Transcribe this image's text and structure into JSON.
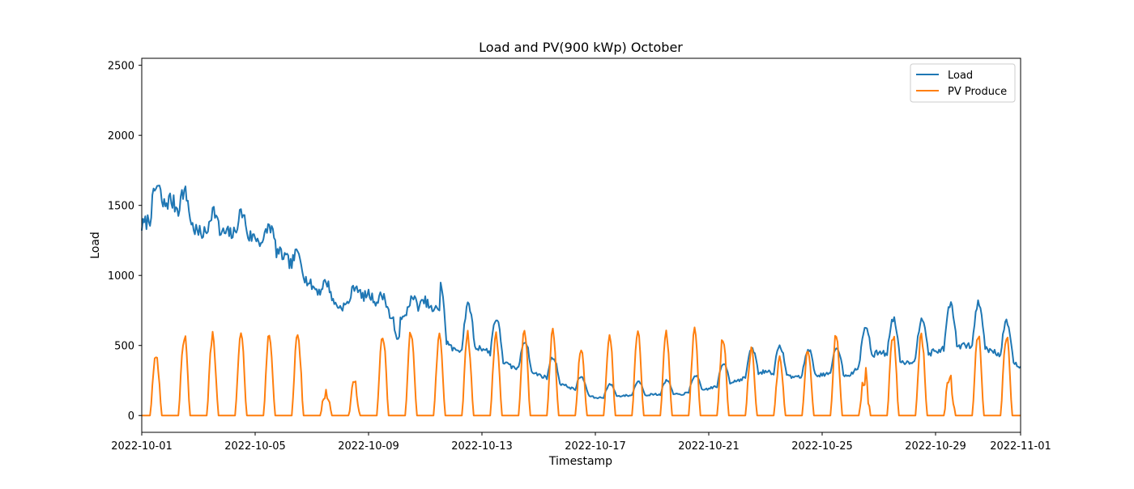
{
  "chart_data": {
    "type": "line",
    "title": "Load and PV(900 kWp) October",
    "xlabel": "Timestamp",
    "ylabel": "Load",
    "xlim": [
      "2022-10-01",
      "2022-11-01"
    ],
    "ylim": [
      -120,
      2550
    ],
    "x_ticks": [
      "2022-10-01",
      "2022-10-05",
      "2022-10-09",
      "2022-10-13",
      "2022-10-17",
      "2022-10-21",
      "2022-10-25",
      "2022-10-29",
      "2022-11-01"
    ],
    "y_ticks": [
      0,
      500,
      1000,
      1500,
      2000,
      2500
    ],
    "grid": false,
    "legend": "top-right",
    "series": [
      {
        "name": "Load",
        "color": "#1f77b4",
        "x": [
          "2022-10-01",
          "2022-10-02",
          "2022-10-03",
          "2022-10-04",
          "2022-10-05",
          "2022-10-06",
          "2022-10-07",
          "2022-10-08",
          "2022-10-09",
          "2022-10-10",
          "2022-10-11",
          "2022-10-12",
          "2022-10-13",
          "2022-10-14",
          "2022-10-15",
          "2022-10-16",
          "2022-10-17",
          "2022-10-18",
          "2022-10-19",
          "2022-10-20",
          "2022-10-21",
          "2022-10-22",
          "2022-10-23",
          "2022-10-24",
          "2022-10-25",
          "2022-10-26",
          "2022-10-27",
          "2022-10-28",
          "2022-10-29",
          "2022-10-30",
          "2022-10-31",
          "2022-11-01"
        ],
        "values": [
          1400,
          1600,
          1350,
          1350,
          1320,
          1180,
          960,
          800,
          900,
          680,
          850,
          560,
          580,
          420,
          350,
          250,
          150,
          170,
          180,
          180,
          230,
          300,
          380,
          330,
          350,
          350,
          550,
          450,
          550,
          600,
          560,
          410
        ]
      },
      {
        "name": "PV Produce",
        "color": "#ff7f0e",
        "x": [
          "2022-10-01",
          "2022-10-02",
          "2022-10-03",
          "2022-10-04",
          "2022-10-05",
          "2022-10-06",
          "2022-10-07",
          "2022-10-08",
          "2022-10-09",
          "2022-10-10",
          "2022-10-11",
          "2022-10-12",
          "2022-10-13",
          "2022-10-14",
          "2022-10-15",
          "2022-10-16",
          "2022-10-17",
          "2022-10-18",
          "2022-10-19",
          "2022-10-20",
          "2022-10-21",
          "2022-10-22",
          "2022-10-23",
          "2022-10-24",
          "2022-10-25",
          "2022-10-26",
          "2022-10-27",
          "2022-10-28",
          "2022-10-29",
          "2022-10-30",
          "2022-10-31"
        ],
        "values": [
          470,
          600,
          600,
          600,
          610,
          620,
          230,
          260,
          620,
          630,
          600,
          600,
          610,
          640,
          610,
          500,
          600,
          620,
          610,
          620,
          580,
          490,
          420,
          500,
          600,
          340,
          610,
          600,
          330,
          600,
          610
        ]
      }
    ]
  }
}
